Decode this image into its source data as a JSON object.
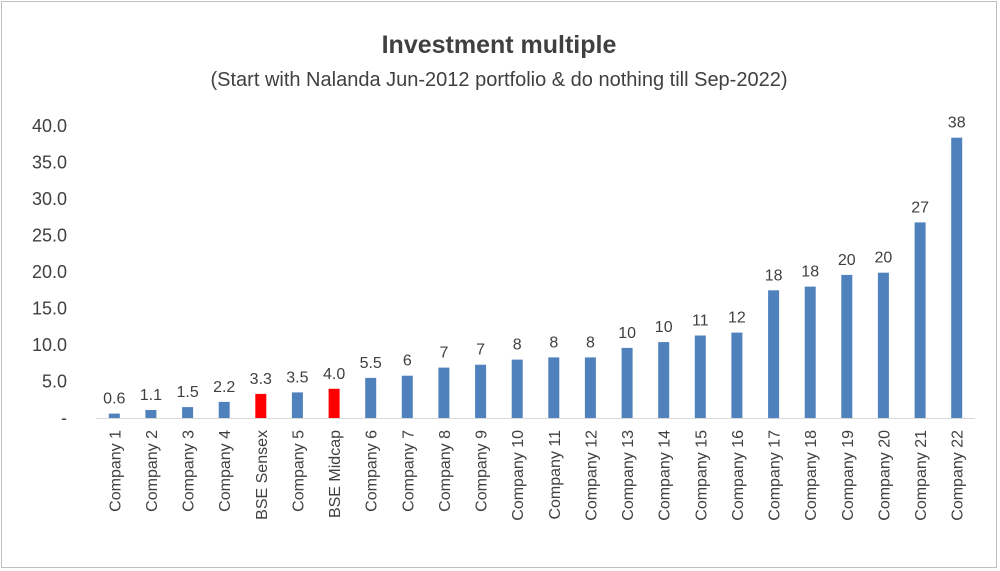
{
  "chart_data": {
    "type": "bar",
    "title": "Investment multiple",
    "subtitle": "(Start with Nalanda Jun-2012 portfolio & do nothing till Sep-2022)",
    "xlabel": "",
    "ylabel": "",
    "ylim": [
      0,
      40
    ],
    "yticks": [
      "-",
      "5.0",
      "10.0",
      "15.0",
      "20.0",
      "25.0",
      "30.0",
      "35.0",
      "40.0"
    ],
    "ytick_values": [
      0,
      5,
      10,
      15,
      20,
      25,
      30,
      35,
      40
    ],
    "grid": false,
    "legend": "none",
    "categories": [
      "Company 1",
      "Company 2",
      "Company 3",
      "Company 4",
      "BSE Sensex",
      "Company 5",
      "BSE Midcap",
      "Company 6",
      "Company 7",
      "Company 8",
      "Company 9",
      "Company 10",
      "Company 11",
      "Company 12",
      "Company 13",
      "Company 14",
      "Company 15",
      "Company 16",
      "Company 17",
      "Company 18",
      "Company 19",
      "Company 20",
      "Company 21",
      "Company 22"
    ],
    "values": [
      0.6,
      1.1,
      1.5,
      2.2,
      3.3,
      3.5,
      4.0,
      5.5,
      5.8,
      6.9,
      7.3,
      8.0,
      8.3,
      8.3,
      9.6,
      10.4,
      11.3,
      11.7,
      17.5,
      18.0,
      19.6,
      19.9,
      26.8,
      38.4
    ],
    "data_labels": [
      "0.6",
      "1.1",
      "1.5",
      "2.2",
      "3.3",
      "3.5",
      "4.0",
      "5.5",
      "6",
      "7",
      "7",
      "8",
      "8",
      "8",
      "10",
      "10",
      "11",
      "12",
      "18",
      "18",
      "20",
      "20",
      "27",
      "38"
    ],
    "colors": {
      "default": "#4f81bd",
      "highlight": "#ff0000",
      "highlighted_categories": [
        "BSE Sensex",
        "BSE Midcap"
      ]
    }
  }
}
